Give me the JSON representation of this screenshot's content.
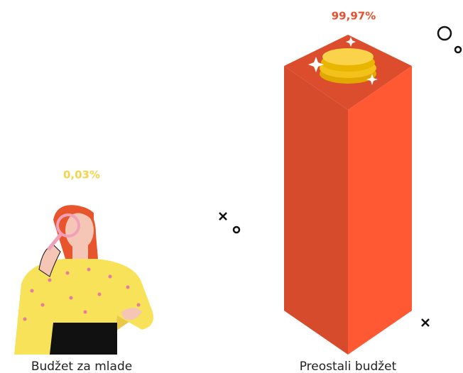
{
  "chart_data": {
    "type": "bar",
    "categories": [
      "Budžet za mlade",
      "Preostali budžet"
    ],
    "values": [
      0.03,
      99.97
    ],
    "value_labels": [
      "0,03%",
      "99,97%"
    ],
    "colors": [
      "#f4d44c",
      "#e8512f"
    ]
  }
}
